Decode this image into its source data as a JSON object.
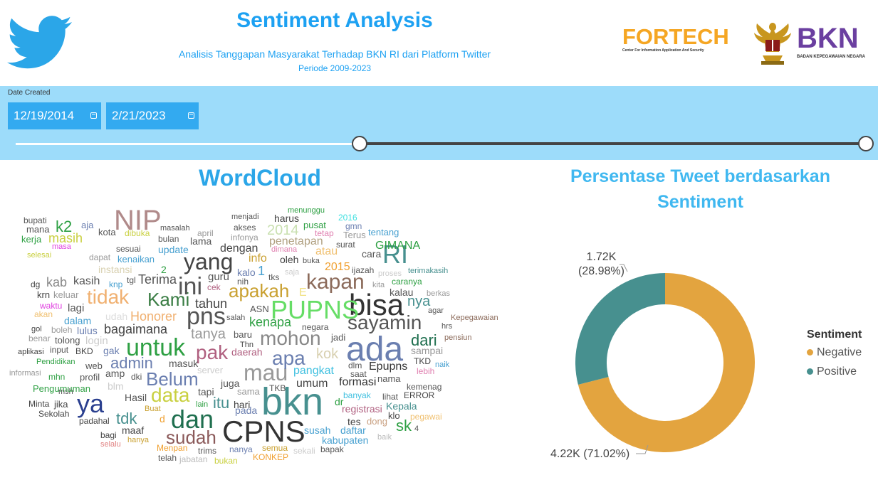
{
  "header": {
    "title": "Sentiment Analysis",
    "subtitle": "Analisis Tanggapan Masyarakat Terhadap BKN RI dari Platform Twitter",
    "period": "Periode 2009-2023",
    "fortech_logo": "FORTECH",
    "fortech_tagline": "Center For Information Application And Security",
    "bkn_logo": "BKN",
    "bkn_tagline": "BADAN KEPEGAWAIAN NEGARA",
    "twitter_icon": "twitter-bird-icon",
    "garuda_icon": "garuda-emblem-icon"
  },
  "filter": {
    "label": "Date Created",
    "start_date": "12/19/2014",
    "end_date": "2/21/2023",
    "calendar_icon": "calendar-icon"
  },
  "wordcloud": {
    "title": "WordCloud",
    "words": [
      "NIP",
      "bisa",
      "ada",
      "bkn",
      "CPNS",
      "PUPNS",
      "sayamin",
      "apakah",
      "Kami",
      "yang",
      "ini",
      "tidak",
      "untuk",
      "pns",
      "mau",
      "mohon",
      "RI",
      "kapan",
      "dan",
      "sudah",
      "pak",
      "Belum",
      "data",
      "ya",
      "apa",
      "dari",
      "tdk",
      "admin",
      "bagaimana",
      "Honorer",
      "itu",
      "Terima",
      "tahun",
      "masih",
      "kab",
      "kasih",
      "lagi",
      "2014",
      "penetapan",
      "dengan",
      "info",
      "harus",
      "oleh",
      "GIMANA",
      "Epupns",
      "pangkat",
      "kok",
      "tanya",
      "kenapa",
      "daerah",
      "2015",
      "atau",
      "nya",
      "umum",
      "sampai",
      "formasi",
      "sk",
      "susah",
      "registrasi",
      "Kepala",
      "daftar",
      "kabupaten",
      "semua",
      "nanya",
      "Menpan",
      "KONKEP",
      "bukan",
      "jabatan",
      "telah",
      "bapak",
      "sekali",
      "baik",
      "tes",
      "dong",
      "pegawai",
      "klo",
      "4",
      "lihat",
      "ERROR",
      "banyak",
      "kemenag",
      "TKB",
      "sama",
      "pada",
      "hari",
      "dr",
      "maaf",
      "Buat",
      "lain",
      "tapi",
      "juga",
      "server",
      "masuk",
      "Hasil",
      "blm",
      "dki",
      "amp",
      "web",
      "profil",
      "mhn",
      "informasi",
      "Pendidikan",
      "aplikasi",
      "BKD",
      "input",
      "gak",
      "lulus",
      "tolong",
      "boleh",
      "gol",
      "benar",
      "akan",
      "waktu",
      "dalam",
      "udah",
      "login",
      "krn",
      "keluar",
      "dg",
      "knp",
      "tgl",
      "instansi",
      "kenaikan",
      "dapat",
      "sesuai",
      "bulan",
      "update",
      "lama",
      "april",
      "masalah",
      "dibuka",
      "kota",
      "aja",
      "k2",
      "mana",
      "bupati",
      "kerja",
      "masa",
      "selesai",
      "menjadi",
      "akses",
      "infonya",
      "pusat",
      "tetap",
      "2016",
      "gmn",
      "Terus",
      "surat",
      "menunggu",
      "tentang",
      "cara",
      "ijazah",
      "proses",
      "terimakasih",
      "caranya",
      "kalau",
      "berkas",
      "agar",
      "Kepegawaian",
      "hrs",
      "pensiun",
      "TKD",
      "naik",
      "lebih",
      "negara",
      "jadi",
      "baru",
      "Thn",
      "dlm",
      "saat",
      "nama",
      "ASN",
      "salah",
      "kalo",
      "nih",
      "cek",
      "tks",
      "saja",
      "dimana",
      "buka",
      "1",
      "2",
      "E",
      "guru",
      "selalu",
      "hanya",
      "bagi",
      "padahal",
      "d",
      "Minta",
      "Sekolah",
      "jika",
      "msh",
      "Pengumuman",
      "trims",
      "kita"
    ]
  },
  "chart_data": {
    "type": "pie",
    "variant": "donut",
    "title": "Persentase Tweet berdasarkan Sentiment",
    "legend_title": "Sentiment",
    "legend_position": "right",
    "categories": [
      "Negative",
      "Positive"
    ],
    "values": [
      4220,
      1720
    ],
    "percentages": [
      71.02,
      28.98
    ],
    "value_labels": [
      "4.22K",
      "1.72K"
    ],
    "percent_labels": [
      "(71.02%)",
      "(28.98%)"
    ],
    "colors": [
      "#e3a43f",
      "#47908f"
    ]
  }
}
